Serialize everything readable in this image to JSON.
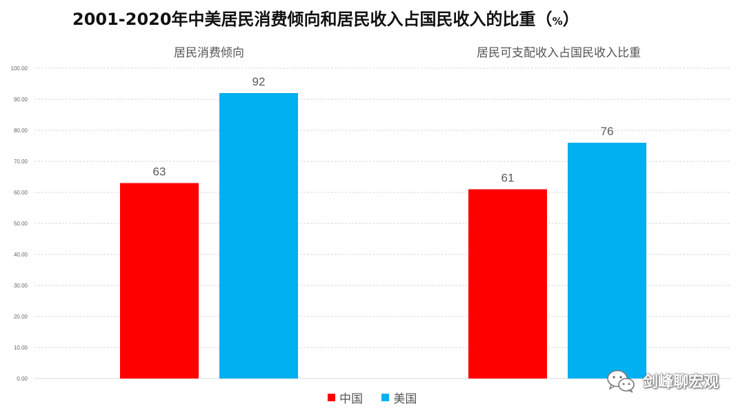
{
  "title": {
    "main": "2001-2020年中美居民消费倾向和居民收入占国民收入的比重（",
    "unit": "%",
    "close": "）"
  },
  "legend": [
    {
      "name": "中国",
      "color": "#ff0000"
    },
    {
      "name": "美国",
      "color": "#00b0f0"
    }
  ],
  "watermark": {
    "text": "剑峰聊宏观",
    "icon": "wechat-icon"
  },
  "chart_data": {
    "type": "bar",
    "title": "2001-2020年中美居民消费倾向和居民收入占国民收入的比重（%）",
    "categories": [
      "居民消费倾向",
      "居民可支配收入占国民收入比重"
    ],
    "series": [
      {
        "name": "中国",
        "values": [
          63,
          61
        ],
        "color": "#ff0000"
      },
      {
        "name": "美国",
        "values": [
          92,
          76
        ],
        "color": "#00b0f0"
      }
    ],
    "data_labels": [
      [
        "63",
        "92"
      ],
      [
        "61",
        "76"
      ]
    ],
    "yticks": [
      "0.00",
      "10.00",
      "20.00",
      "30.00",
      "40.00",
      "50.00",
      "60.00",
      "70.00",
      "80.00",
      "90.00",
      "100.00"
    ],
    "ylim": [
      0,
      100
    ],
    "grid": true,
    "legend_position": "bottom"
  }
}
